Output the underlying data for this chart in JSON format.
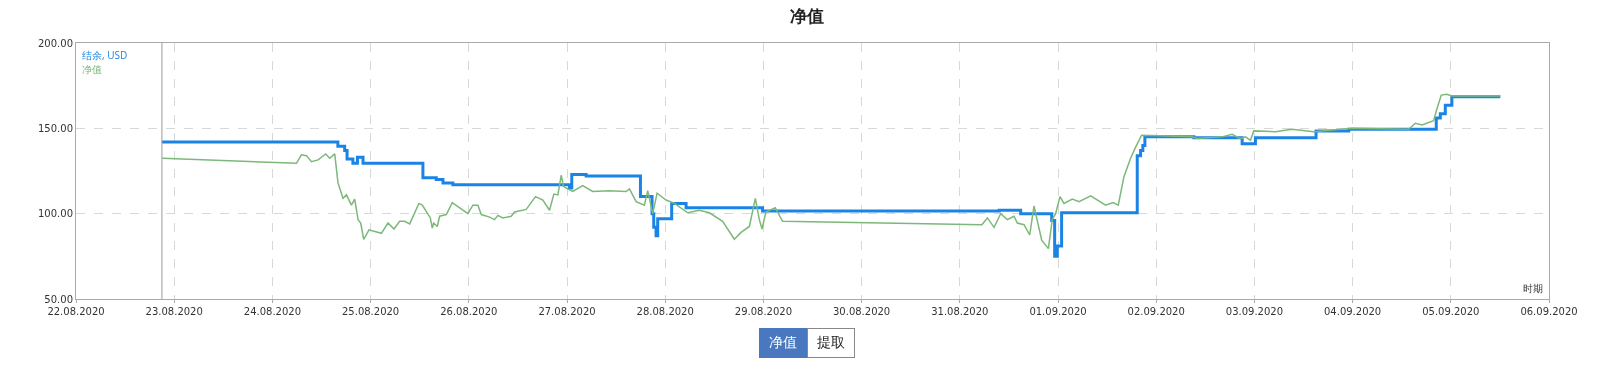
{
  "chart_data": {
    "type": "line",
    "title": "净值",
    "xlabel": "时期",
    "xlim": [
      "2020-08-22",
      "2020-09-06"
    ],
    "xticks": [
      {
        "value": "2020-08-22",
        "label": "22.08.2020"
      },
      {
        "value": "2020-08-23",
        "label": "23.08.2020"
      },
      {
        "value": "2020-08-24",
        "label": "24.08.2020"
      },
      {
        "value": "2020-08-25",
        "label": "25.08.2020"
      },
      {
        "value": "2020-08-26",
        "label": "26.08.2020"
      },
      {
        "value": "2020-08-27",
        "label": "27.08.2020"
      },
      {
        "value": "2020-08-28",
        "label": "28.08.2020"
      },
      {
        "value": "2020-08-29",
        "label": "29.08.2020"
      },
      {
        "value": "2020-08-30",
        "label": "30.08.2020"
      },
      {
        "value": "2020-08-31",
        "label": "31.08.2020"
      },
      {
        "value": "2020-09-01",
        "label": "01.09.2020"
      },
      {
        "value": "2020-09-02",
        "label": "02.09.2020"
      },
      {
        "value": "2020-09-03",
        "label": "03.09.2020"
      },
      {
        "value": "2020-09-04",
        "label": "04.09.2020"
      },
      {
        "value": "2020-09-05",
        "label": "05.09.2020"
      },
      {
        "value": "2020-09-06",
        "label": "06.09.2020"
      }
    ],
    "ylim": [
      50,
      200
    ],
    "yticks": [
      {
        "value": 50,
        "label": "50.00"
      },
      {
        "value": 100,
        "label": "100.00"
      },
      {
        "value": 150,
        "label": "150.00"
      },
      {
        "value": 200,
        "label": "200.00"
      }
    ],
    "grid": true,
    "legend": "top left",
    "marker": "none",
    "line_style": "solid",
    "ref_lines": [
      {
        "axis": "x",
        "value": "2020-08-22T21:00",
        "label": null,
        "color": "#999999"
      }
    ],
    "annotations": [
      "净值",
      "提取"
    ],
    "series": [
      {
        "name": "结余, USD",
        "type": "step",
        "color": "#1a84e6",
        "x": [
          "2020-08-22T21:00",
          "2020-08-24T16:00",
          "2020-08-24T17:40",
          "2020-08-24T18:15",
          "2020-08-24T19:40",
          "2020-08-24T20:47",
          "2020-08-24T22:09",
          "2020-08-25T12:47",
          "2020-08-25T16:03",
          "2020-08-25T17:41",
          "2020-08-25T20:07",
          "2020-08-27T00:36",
          "2020-08-27T01:10",
          "2020-08-27T04:40",
          "2020-08-27T17:57",
          "2020-08-27T20:47",
          "2020-08-27T21:12",
          "2020-08-27T21:46",
          "2020-08-27T22:10",
          "2020-08-28T01:35",
          "2020-08-28T05:06",
          "2020-08-28T23:48",
          "2020-08-31T09:36",
          "2020-08-31T14:53",
          "2020-08-31T22:28",
          "2020-08-31T23:11",
          "2020-08-31T23:50",
          "2020-09-01T00:53",
          "2020-09-01T19:22",
          "2020-09-01T20:11",
          "2020-09-01T20:44",
          "2020-09-01T21:14",
          "2020-09-02T09:13",
          "2020-09-02T21:00",
          "2020-09-03T00:15",
          "2020-09-03T15:04",
          "2020-09-03T23:03",
          "2020-09-04T20:27",
          "2020-09-04T21:26",
          "2020-09-04T22:39",
          "2020-09-05T00:16",
          "2020-09-05T12:06"
        ],
        "values": [
          142,
          139.5,
          137,
          132,
          129.5,
          133,
          129.5,
          121,
          120,
          118,
          117,
          115,
          123,
          122,
          110,
          100,
          92,
          87,
          97,
          106,
          103.5,
          101.5,
          102,
          100,
          96,
          75,
          81,
          100.5,
          134,
          137,
          140,
          145,
          144.5,
          141,
          144.5,
          148.5,
          149.5,
          156,
          158.5,
          163.5,
          168.5,
          168.5
        ]
      },
      {
        "name": "净值",
        "color": "#7cb87a",
        "x": [
          "2020-08-22T21:04",
          "2020-08-24T05:53",
          "2020-08-24T07:06",
          "2020-08-24T08:20",
          "2020-08-24T09:33",
          "2020-08-24T11:10",
          "2020-08-24T13:02",
          "2020-08-24T14:01",
          "2020-08-24T15:14",
          "2020-08-24T16:02",
          "2020-08-24T17:15",
          "2020-08-24T18:06",
          "2020-08-24T19:19",
          "2020-08-24T20:07",
          "2020-08-24T20:56",
          "2020-08-24T21:35",
          "2020-08-24T22:19",
          "2020-08-24T23:37",
          "2020-08-25T02:38",
          "2020-08-25T04:15",
          "2020-08-25T05:43",
          "2020-08-25T07:06",
          "2020-08-25T08:20",
          "2020-08-25T09:33",
          "2020-08-25T11:48",
          "2020-08-25T12:38",
          "2020-08-25T14:36",
          "2020-08-25T15:04",
          "2020-08-25T15:24",
          "2020-08-25T16:18",
          "2020-08-25T16:52",
          "2020-08-25T18:30",
          "2020-08-25T19:58",
          "2020-08-25T23:47",
          "2020-08-26T01:00",
          "2020-08-26T02:14",
          "2020-08-26T03:03",
          "2020-08-26T05:05",
          "2020-08-26T06:18",
          "2020-08-26T07:06",
          "2020-08-26T08:20",
          "2020-08-26T10:22",
          "2020-08-26T11:11",
          "2020-08-26T14:02",
          "2020-08-26T16:19",
          "2020-08-26T18:06",
          "2020-08-26T19:44",
          "2020-08-26T20:47",
          "2020-08-26T21:46",
          "2020-08-26T22:35",
          "2020-08-26T23:08",
          "2020-08-26T23:48",
          "2020-08-27T01:26",
          "2020-08-27T03:50",
          "2020-08-27T06:17",
          "2020-08-27T10:22",
          "2020-08-27T14:27",
          "2020-08-27T15:16",
          "2020-08-27T16:54",
          "2020-08-27T18:55",
          "2020-08-27T19:44",
          "2020-08-27T20:57",
          "2020-08-27T22:01",
          "2020-08-28T00:13",
          "2020-08-28T02:15",
          "2020-08-28T05:30",
          "2020-08-28T08:21",
          "2020-08-28T10:48",
          "2020-08-28T14:02",
          "2020-08-28T16:54",
          "2020-08-28T18:32",
          "2020-08-28T20:34",
          "2020-08-28T22:02",
          "2020-08-28T23:00",
          "2020-08-28T23:40",
          "2020-08-29T00:37",
          "2020-08-29T02:54",
          "2020-08-29T04:41",
          "2020-08-31T05:23",
          "2020-08-31T06:45",
          "2020-08-31T08:22",
          "2020-08-31T10:00",
          "2020-08-31T11:38",
          "2020-08-31T13:15",
          "2020-08-31T14:04",
          "2020-08-31T15:42",
          "2020-08-31T17:05",
          "2020-08-31T18:08",
          "2020-08-31T20:01",
          "2020-08-31T21:39",
          "2020-08-31T22:36",
          "2020-08-31T23:25",
          "2020-09-01T00:29",
          "2020-09-01T01:28",
          "2020-09-01T03:30",
          "2020-09-01T05:08",
          "2020-09-01T08:00",
          "2020-09-01T11:38",
          "2020-09-01T13:26",
          "2020-09-01T14:44",
          "2020-09-01T16:06",
          "2020-09-01T17:44",
          "2020-09-01T18:58",
          "2020-09-01T20:25",
          "2020-09-02T08:47",
          "2020-09-02T10:00",
          "2020-09-02T16:06",
          "2020-09-02T18:33",
          "2020-09-02T20:35",
          "2020-09-02T21:49",
          "2020-09-02T23:02",
          "2020-09-02T23:51",
          "2020-09-03T05:08",
          "2020-09-03T09:13",
          "2020-09-03T14:30",
          "2020-09-03T23:51",
          "2020-09-04T13:42",
          "2020-09-04T15:20",
          "2020-09-04T16:57",
          "2020-09-04T19:48",
          "2020-09-04T20:37",
          "2020-09-04T21:40",
          "2020-09-04T23:02",
          "2020-09-05T00:16",
          "2020-09-05T12:06"
        ],
        "values": [
          132.5,
          129.5,
          134.5,
          134,
          130.5,
          131.5,
          135,
          132.5,
          135,
          118,
          109,
          111,
          105,
          108.5,
          96.5,
          94.5,
          85,
          90.5,
          88.5,
          94.5,
          91,
          95.5,
          95.5,
          94,
          106,
          105,
          97.5,
          91.5,
          94.5,
          92.5,
          98.5,
          99.5,
          106.5,
          100,
          105,
          105,
          99.5,
          98,
          96.5,
          99,
          97.5,
          98.5,
          101,
          102.5,
          110,
          108,
          102,
          111.5,
          111,
          122.5,
          116,
          115,
          113,
          116.5,
          113,
          113.5,
          113,
          114.5,
          107,
          105,
          113.5,
          100,
          112,
          108,
          106,
          100.5,
          102,
          100.5,
          95.5,
          85,
          89,
          92.5,
          109,
          96.5,
          91,
          101,
          103.5,
          95.5,
          93.5,
          97.5,
          92,
          100,
          96.5,
          98.5,
          94.5,
          93.5,
          87.5,
          104.5,
          84.5,
          79.5,
          96.5,
          100,
          110,
          106,
          108.5,
          107,
          110.5,
          105,
          106.5,
          105,
          121.5,
          132.5,
          139,
          146,
          145,
          144,
          145,
          146.5,
          144,
          145,
          143,
          148.5,
          148,
          149.5,
          148,
          150,
          149.5,
          153,
          152,
          154.5,
          161.5,
          169.5,
          170,
          169,
          169
        ]
      }
    ]
  }
}
